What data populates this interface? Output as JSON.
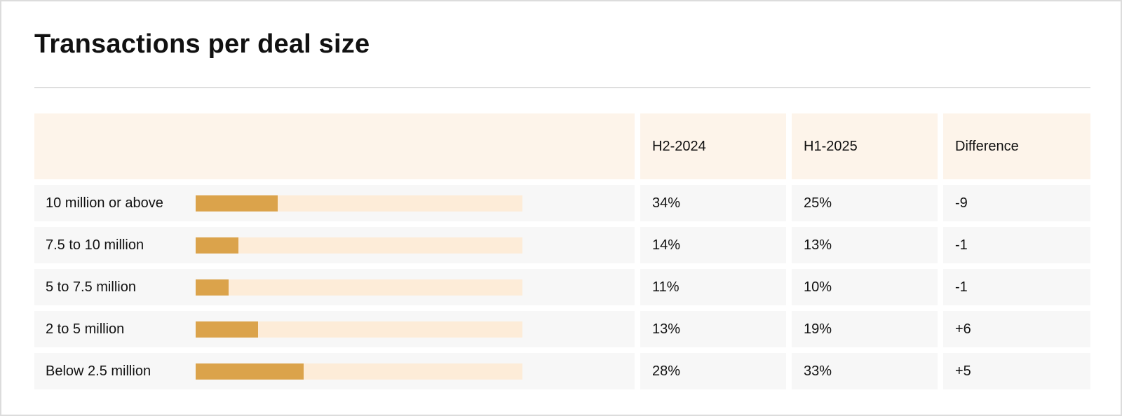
{
  "title": "Transactions per deal size",
  "colors": {
    "bar_fill": "#dba34b",
    "bar_track": "#fdecd8",
    "header_bg": "#fdf4ea",
    "row_bg": "#f7f7f7"
  },
  "chart_data": {
    "type": "table",
    "title": "Transactions per deal size",
    "columns": [
      "",
      "H2-2024",
      "H1-2025",
      "Difference"
    ],
    "rows": [
      {
        "category": "10 million or above",
        "h2_2024": "34%",
        "h1_2025": "25%",
        "difference": "-9",
        "bar_value": 0.25
      },
      {
        "category": "7.5 to 10 million",
        "h2_2024": "14%",
        "h1_2025": "13%",
        "difference": "-1",
        "bar_value": 0.13
      },
      {
        "category": "5 to 7.5 million",
        "h2_2024": "11%",
        "h1_2025": "10%",
        "difference": "-1",
        "bar_value": 0.1
      },
      {
        "category": "2 to 5 million",
        "h2_2024": "13%",
        "h1_2025": "19%",
        "difference": "+6",
        "bar_value": 0.19
      },
      {
        "category": "Below 2.5 million",
        "h2_2024": "28%",
        "h1_2025": "33%",
        "difference": "+5",
        "bar_value": 0.33
      }
    ]
  }
}
